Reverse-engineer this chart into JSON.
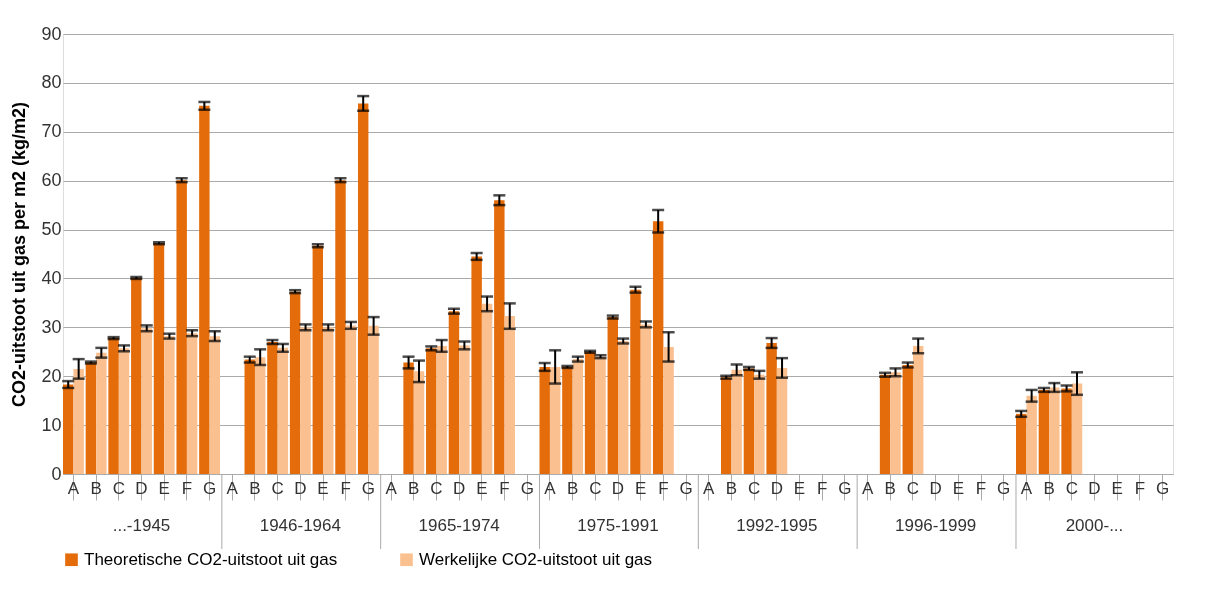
{
  "chart_data": {
    "type": "bar",
    "ylabel": "CO2-uitstoot uit gas per m2 (kg/m2)",
    "categories": [
      "A",
      "B",
      "C",
      "D",
      "E",
      "F",
      "G",
      "A",
      "B",
      "C",
      "D",
      "E",
      "F",
      "G",
      "A",
      "B",
      "C",
      "D",
      "E",
      "F",
      "G",
      "A",
      "B",
      "C",
      "D",
      "E",
      "F",
      "G",
      "A",
      "B",
      "C",
      "D",
      "E",
      "F",
      "G",
      "A",
      "B",
      "C",
      "D",
      "E",
      "F",
      "G",
      "A",
      "B",
      "C",
      "D",
      "E",
      "F",
      "G"
    ],
    "annotations": [
      "...-1945",
      "1946-1964",
      "1965-1974",
      "1975-1991",
      "1992-1995",
      "1996-1999",
      "2000-..."
    ],
    "series": [
      {
        "name": "Theoretische CO2-uitstoot uit gas",
        "color": "#e46c0a",
        "values": [
          18.3,
          22.8,
          27.8,
          40.1,
          47.2,
          60.1,
          75.3,
          null,
          23.4,
          27.0,
          37.3,
          46.7,
          60.1,
          75.8,
          null,
          22.8,
          25.7,
          33.3,
          44.5,
          56.0,
          null,
          21.9,
          21.9,
          25.0,
          32.1,
          37.7,
          51.7,
          null,
          null,
          19.8,
          21.6,
          26.8,
          null,
          null,
          null,
          null,
          20.3,
          22.3,
          null,
          null,
          null,
          null,
          12.3,
          17.2,
          17.5,
          null,
          null,
          null,
          null
        ],
        "errors": [
          0.7,
          0.2,
          0.2,
          0.2,
          0.2,
          0.4,
          0.8,
          null,
          0.6,
          0.4,
          0.3,
          0.3,
          0.4,
          1.5,
          null,
          1.2,
          0.4,
          0.5,
          0.7,
          1.0,
          null,
          0.8,
          0.2,
          0.2,
          0.3,
          0.6,
          2.3,
          null,
          null,
          0.3,
          0.3,
          1.0,
          null,
          null,
          null,
          null,
          0.4,
          0.5,
          null,
          null,
          null,
          null,
          0.6,
          0.4,
          0.6,
          null,
          null,
          null,
          null
        ]
      },
      {
        "name": "Werkelijke CO2-uitstoot uit gas",
        "color": "#fac090",
        "values": [
          21.5,
          24.8,
          25.7,
          29.8,
          28.2,
          28.8,
          28.2,
          null,
          23.9,
          25.8,
          30.0,
          30.0,
          30.4,
          30.3,
          null,
          21.0,
          26.2,
          26.3,
          34.8,
          32.3,
          null,
          21.9,
          23.5,
          24.0,
          27.2,
          30.6,
          26.0,
          null,
          null,
          21.3,
          20.3,
          21.7,
          null,
          null,
          null,
          null,
          20.8,
          26.2,
          null,
          null,
          null,
          null,
          16.0,
          17.7,
          18.5,
          null,
          null,
          null,
          null
        ],
        "errors": [
          2.0,
          1.0,
          0.6,
          0.6,
          0.5,
          0.6,
          1.0,
          null,
          1.6,
          0.8,
          0.6,
          0.6,
          0.7,
          1.8,
          null,
          2.2,
          1.2,
          0.8,
          1.5,
          2.6,
          null,
          3.4,
          0.5,
          0.3,
          0.5,
          0.6,
          3.0,
          null,
          null,
          1.1,
          0.8,
          2.0,
          null,
          null,
          null,
          null,
          0.8,
          1.5,
          null,
          null,
          null,
          null,
          1.2,
          0.9,
          2.3,
          null,
          null,
          null,
          null
        ]
      }
    ],
    "ylim": [
      0,
      90
    ],
    "yticks": [
      0,
      10,
      20,
      30,
      40,
      50,
      60,
      70,
      80,
      90
    ],
    "grid": "y",
    "legend": "bottom"
  }
}
